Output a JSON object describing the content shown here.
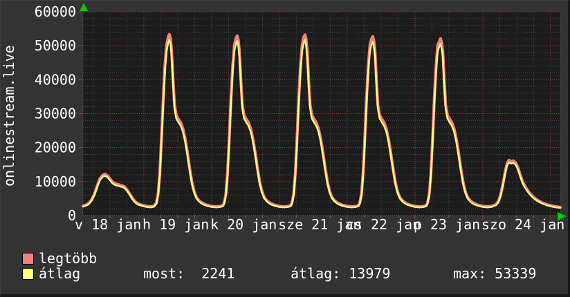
{
  "header": {
    "site": "onlinestream.live"
  },
  "legend": {
    "items": [
      {
        "label": "legtöbb",
        "color": "#f08080"
      },
      {
        "label": "átlag",
        "color": "#ffff80"
      }
    ]
  },
  "stats": {
    "most": {
      "label": "most:",
      "value": "2241"
    },
    "atlag": {
      "label": "átlag:",
      "value": "13979"
    },
    "max": {
      "label": "max:",
      "value": "53339"
    }
  },
  "chart_data": {
    "type": "line",
    "title": "onlinestream.live",
    "ylabel": "onlinestream.live",
    "xlabel": "",
    "ylim": [
      0,
      60000
    ],
    "grid": "on",
    "legend_position": "bottom-left",
    "y_ticks": [
      0,
      10000,
      20000,
      30000,
      40000,
      50000,
      60000
    ],
    "y_minor_step": 2000,
    "x_range_hours": 169,
    "x_minor_grid_hours": 6,
    "x_first_minor_hour": 3.55,
    "x_major_grid_hours": [
      21.55,
      45.55,
      69.55,
      93.55,
      117.55,
      141.55,
      165.55
    ],
    "x_labels": [
      "v 18 jan",
      "h 19 jan",
      "k 20 jan",
      "sze 21 jan",
      "cs 22 jan",
      "p 23 jan",
      "szo 24 jan"
    ],
    "series": [
      {
        "name": "legtöbb",
        "color": "#f08080",
        "width": 4.2,
        "points_key": 2
      },
      {
        "name": "átlag",
        "color": "#ffff7d",
        "width": 2.4,
        "points_key": 1
      }
    ],
    "points_format": [
      "hour",
      "átlag",
      "legtöbb"
    ],
    "points": [
      [
        0,
        2600,
        2830
      ],
      [
        1,
        2850,
        3090
      ],
      [
        2,
        3300,
        3550
      ],
      [
        3,
        4300,
        4580
      ],
      [
        4,
        5900,
        6230
      ],
      [
        5,
        8300,
        8700
      ],
      [
        6,
        10400,
        10860
      ],
      [
        7,
        11400,
        11890
      ],
      [
        7.8,
        11700,
        12200
      ],
      [
        8.6,
        11300,
        11790
      ],
      [
        9.5,
        10400,
        10860
      ],
      [
        10.5,
        9400,
        9830
      ],
      [
        11.5,
        8900,
        9320
      ],
      [
        13,
        8600,
        9010
      ],
      [
        14.5,
        8200,
        8600
      ],
      [
        15.5,
        7300,
        7670
      ],
      [
        16.5,
        6100,
        6430
      ],
      [
        17.5,
        4800,
        5090
      ],
      [
        18.5,
        3800,
        4060
      ],
      [
        19.5,
        3200,
        3450
      ],
      [
        21,
        2800,
        3030
      ],
      [
        22.5,
        2500,
        2730
      ],
      [
        24,
        2400,
        2620
      ],
      [
        25.2,
        2600,
        2830
      ],
      [
        26,
        3500,
        3750
      ],
      [
        26.6,
        6000,
        6400
      ],
      [
        27.2,
        12000,
        12700
      ],
      [
        27.8,
        22000,
        23200
      ],
      [
        28.4,
        33000,
        34500
      ],
      [
        29,
        42500,
        44200
      ],
      [
        29.6,
        48500,
        50200
      ],
      [
        30.2,
        51000,
        52700
      ],
      [
        30.6,
        51800,
        53339
      ],
      [
        31,
        50300,
        52000
      ],
      [
        31.4,
        46500,
        48200
      ],
      [
        31.9,
        38500,
        39900
      ],
      [
        32.4,
        31500,
        32600
      ],
      [
        33,
        28600,
        29600
      ],
      [
        33.8,
        27400,
        28400
      ],
      [
        34.6,
        26400,
        27350
      ],
      [
        35.4,
        24600,
        25500
      ],
      [
        36.2,
        21600,
        22400
      ],
      [
        37,
        17600,
        18300
      ],
      [
        37.8,
        13200,
        13750
      ],
      [
        38.6,
        9200,
        9650
      ],
      [
        39.4,
        6600,
        6950
      ],
      [
        40.2,
        5000,
        5300
      ],
      [
        41.2,
        4000,
        4270
      ],
      [
        42.4,
        3300,
        3550
      ],
      [
        44,
        2800,
        3030
      ],
      [
        45.6,
        2500,
        2730
      ],
      [
        47.2,
        2400,
        2620
      ],
      [
        48.6,
        2500,
        2730
      ],
      [
        49.6,
        2800,
        3030
      ],
      [
        50,
        3500,
        3750
      ],
      [
        50.6,
        6000,
        6400
      ],
      [
        51.2,
        12000,
        12700
      ],
      [
        51.8,
        22000,
        23200
      ],
      [
        52.4,
        33000,
        34500
      ],
      [
        53,
        42500,
        44200
      ],
      [
        53.6,
        48500,
        50200
      ],
      [
        54.2,
        50600,
        52300
      ],
      [
        54.6,
        51400,
        52900
      ],
      [
        55,
        49900,
        51600
      ],
      [
        55.4,
        46500,
        48200
      ],
      [
        55.9,
        38500,
        39900
      ],
      [
        56.4,
        31500,
        32600
      ],
      [
        57,
        28600,
        29600
      ],
      [
        57.8,
        27400,
        28400
      ],
      [
        58.6,
        26400,
        27350
      ],
      [
        59.4,
        24600,
        25500
      ],
      [
        60.2,
        21600,
        22400
      ],
      [
        61,
        17600,
        18300
      ],
      [
        61.8,
        13200,
        13750
      ],
      [
        62.6,
        9200,
        9650
      ],
      [
        63.4,
        6600,
        6950
      ],
      [
        64.2,
        5000,
        5300
      ],
      [
        65.2,
        4000,
        4270
      ],
      [
        66.4,
        3300,
        3550
      ],
      [
        68,
        2800,
        3030
      ],
      [
        69.6,
        2500,
        2730
      ],
      [
        71.2,
        2400,
        2620
      ],
      [
        72.6,
        2500,
        2730
      ],
      [
        73.6,
        2800,
        3030
      ],
      [
        74,
        3500,
        3750
      ],
      [
        74.6,
        6000,
        6400
      ],
      [
        75.2,
        12000,
        12700
      ],
      [
        75.8,
        22000,
        23200
      ],
      [
        76.4,
        33000,
        34500
      ],
      [
        77,
        42500,
        44200
      ],
      [
        77.6,
        48500,
        50200
      ],
      [
        78.2,
        50900,
        52600
      ],
      [
        78.6,
        51700,
        53200
      ],
      [
        79,
        50200,
        51900
      ],
      [
        79.4,
        46500,
        48200
      ],
      [
        79.9,
        38500,
        39900
      ],
      [
        80.4,
        31500,
        32600
      ],
      [
        81,
        28600,
        29600
      ],
      [
        81.8,
        27400,
        28400
      ],
      [
        82.6,
        26400,
        27350
      ],
      [
        83.4,
        24600,
        25500
      ],
      [
        84.2,
        21600,
        22400
      ],
      [
        85,
        17600,
        18300
      ],
      [
        85.8,
        13200,
        13750
      ],
      [
        86.6,
        9200,
        9650
      ],
      [
        87.4,
        6600,
        6950
      ],
      [
        88.2,
        5000,
        5300
      ],
      [
        89.2,
        4000,
        4270
      ],
      [
        90.4,
        3300,
        3550
      ],
      [
        92,
        2800,
        3030
      ],
      [
        93.6,
        2500,
        2730
      ],
      [
        95.2,
        2400,
        2620
      ],
      [
        96.6,
        2500,
        2730
      ],
      [
        97.6,
        2800,
        3030
      ],
      [
        98,
        3500,
        3750
      ],
      [
        98.6,
        6000,
        6400
      ],
      [
        99.2,
        12000,
        12700
      ],
      [
        99.8,
        22000,
        23200
      ],
      [
        100.4,
        33000,
        34500
      ],
      [
        101,
        42500,
        44200
      ],
      [
        101.6,
        48500,
        50200
      ],
      [
        102.2,
        50400,
        52100
      ],
      [
        102.6,
        51200,
        52700
      ],
      [
        103,
        49700,
        51400
      ],
      [
        103.4,
        46500,
        48200
      ],
      [
        103.9,
        38500,
        39900
      ],
      [
        104.4,
        31500,
        32600
      ],
      [
        105,
        28600,
        29600
      ],
      [
        105.8,
        27400,
        28400
      ],
      [
        106.6,
        26400,
        27350
      ],
      [
        107.4,
        24600,
        25500
      ],
      [
        108.2,
        21600,
        22400
      ],
      [
        109,
        17600,
        18300
      ],
      [
        109.8,
        13200,
        13750
      ],
      [
        110.6,
        9200,
        9650
      ],
      [
        111.4,
        6600,
        6950
      ],
      [
        112.2,
        5000,
        5300
      ],
      [
        113.2,
        4000,
        4270
      ],
      [
        114.4,
        3300,
        3550
      ],
      [
        116,
        2800,
        3030
      ],
      [
        117.6,
        2500,
        2730
      ],
      [
        119.2,
        2400,
        2620
      ],
      [
        120.6,
        2500,
        2730
      ],
      [
        121.6,
        2800,
        3030
      ],
      [
        122,
        3500,
        3750
      ],
      [
        122.6,
        6000,
        6400
      ],
      [
        123.2,
        12000,
        12700
      ],
      [
        123.8,
        22000,
        23200
      ],
      [
        124.4,
        33000,
        34500
      ],
      [
        125,
        42500,
        44200
      ],
      [
        125.6,
        48500,
        50200
      ],
      [
        126.2,
        49800,
        51300
      ],
      [
        126.6,
        50600,
        52100
      ],
      [
        127,
        49100,
        50800
      ],
      [
        127.4,
        46500,
        48200
      ],
      [
        127.9,
        38500,
        39900
      ],
      [
        128.4,
        31500,
        32600
      ],
      [
        129,
        28600,
        29600
      ],
      [
        129.8,
        27400,
        28400
      ],
      [
        130.6,
        26400,
        27350
      ],
      [
        131.4,
        24600,
        25500
      ],
      [
        132.2,
        21600,
        22400
      ],
      [
        133,
        17600,
        18300
      ],
      [
        133.8,
        13200,
        13750
      ],
      [
        134.6,
        9200,
        9650
      ],
      [
        135.4,
        6600,
        6950
      ],
      [
        136.2,
        5000,
        5300
      ],
      [
        137.2,
        4000,
        4270
      ],
      [
        138.4,
        3300,
        3550
      ],
      [
        140,
        2800,
        3030
      ],
      [
        141.6,
        2500,
        2730
      ],
      [
        143.2,
        2400,
        2620
      ],
      [
        144.6,
        2500,
        2730
      ],
      [
        145.6,
        2800,
        3030
      ],
      [
        146.2,
        3000,
        3240
      ],
      [
        147,
        3800,
        4060
      ],
      [
        147.8,
        5500,
        5820
      ],
      [
        148.6,
        8500,
        8900
      ],
      [
        149.4,
        12000,
        12500
      ],
      [
        150.1,
        14600,
        15200
      ],
      [
        150.8,
        15600,
        16300
      ],
      [
        151.6,
        15300,
        15900
      ],
      [
        152.4,
        15500,
        16100
      ],
      [
        153.2,
        14900,
        15500
      ],
      [
        154,
        13500,
        14050
      ],
      [
        154.8,
        11500,
        12000
      ],
      [
        155.6,
        9600,
        10050
      ],
      [
        156.6,
        8000,
        8390
      ],
      [
        157.8,
        6600,
        6950
      ],
      [
        159.2,
        5300,
        5600
      ],
      [
        160.8,
        4300,
        4580
      ],
      [
        162.6,
        3500,
        3750
      ],
      [
        164.6,
        2900,
        3140
      ],
      [
        166.4,
        2550,
        2780
      ],
      [
        168,
        2350,
        2570
      ],
      [
        169,
        2241,
        2450
      ]
    ],
    "colors": {
      "background": "#333333",
      "plot_background": "#1c1c1c",
      "major_grid": "#9e4040",
      "minor_grid": "#474747",
      "axis_edge": "#5a5a5a",
      "arrow": "#00cc00",
      "text": "#ffffff"
    }
  }
}
